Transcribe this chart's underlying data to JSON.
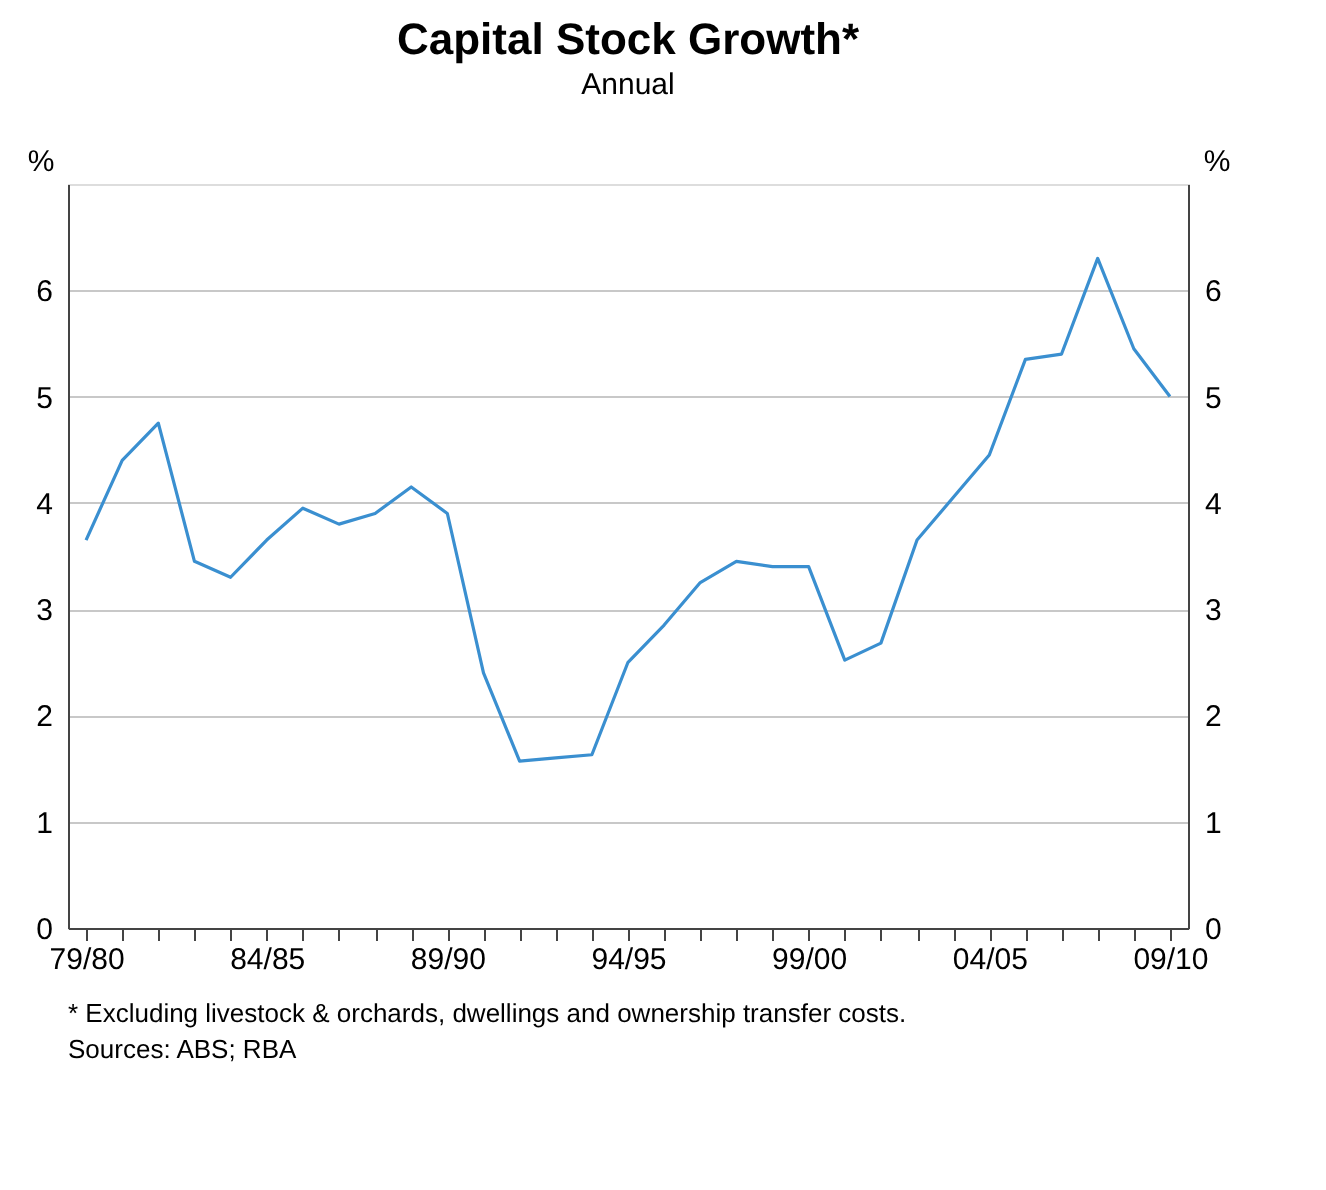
{
  "chart_data": {
    "type": "line",
    "title": "Capital Stock Growth*",
    "subtitle": "Annual",
    "ylabel": "%",
    "y2label": "%",
    "categories": [
      "79/80",
      null,
      null,
      null,
      null,
      "84/85",
      null,
      null,
      null,
      null,
      "89/90",
      null,
      null,
      null,
      null,
      "94/95",
      null,
      null,
      null,
      null,
      "99/00",
      null,
      null,
      null,
      null,
      "04/05",
      null,
      null,
      null,
      null,
      "09/10"
    ],
    "series": [
      {
        "color": "#3a8fd0",
        "values": [
          3.65,
          4.4,
          4.75,
          3.45,
          3.3,
          3.65,
          3.95,
          3.8,
          3.9,
          4.15,
          3.9,
          2.4,
          1.57,
          1.6,
          1.63,
          2.5,
          2.85,
          3.25,
          3.45,
          3.4,
          3.4,
          2.52,
          2.68,
          3.65,
          4.05,
          4.45,
          5.35,
          5.4,
          6.3,
          5.45,
          5.0
        ]
      }
    ],
    "ylim": [
      0,
      7
    ],
    "yticks": [
      0,
      1,
      2,
      3,
      4,
      5,
      6
    ],
    "y2lim": [
      0,
      7
    ],
    "y2ticks": [
      0,
      1,
      2,
      3,
      4,
      5,
      6
    ],
    "grid": "y",
    "legend": false,
    "line_style": "solid",
    "marker": "none",
    "annotations": [
      "*     Excluding livestock & orchards, dwellings and ownership transfer costs.",
      "Sources: ABS; RBA"
    ]
  }
}
